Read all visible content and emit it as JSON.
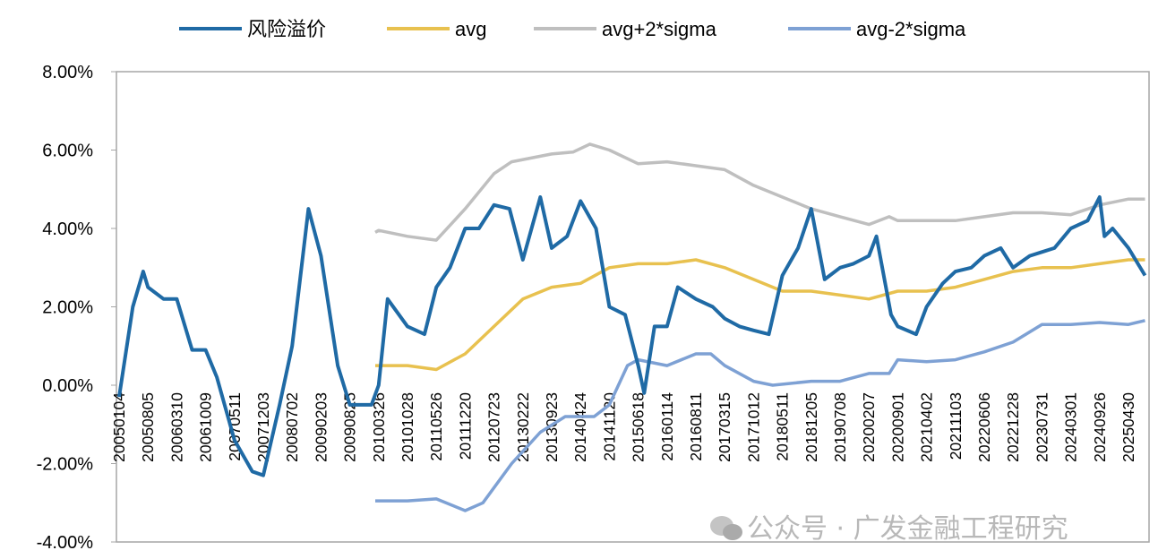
{
  "chart_data": {
    "type": "line",
    "title": "",
    "xlabel": "",
    "ylabel": "",
    "ylim": [
      -4,
      8
    ],
    "y_unit": "%",
    "y_ticks": [
      "8.00%",
      "6.00%",
      "4.00%",
      "2.00%",
      "0.00%",
      "-2.00%",
      "-4.00%"
    ],
    "y_tick_values": [
      8,
      6,
      4,
      2,
      0,
      -2,
      -4
    ],
    "x_ticks": [
      "20050104",
      "20050805",
      "20060310",
      "20061009",
      "20070511",
      "20071203",
      "20080702",
      "20090203",
      "20090825",
      "20100326",
      "20101028",
      "20110526",
      "20111220",
      "20120723",
      "20130222",
      "20130923",
      "20140424",
      "20141120",
      "20150618",
      "20160114",
      "20160811",
      "20170315",
      "20171012",
      "20180511",
      "20181205",
      "20190708",
      "20200207",
      "20200901",
      "20210402",
      "20211103",
      "20220606",
      "20221228",
      "20230731",
      "20240301",
      "20240926",
      "20250430"
    ],
    "grid": false,
    "legend_position": "top",
    "series": [
      {
        "name": "风险溢价",
        "color": "#1f6aa5",
        "points": [
          [
            "20050104",
            -0.3
          ],
          [
            "20050415",
            2.0
          ],
          [
            "20050701",
            2.9
          ],
          [
            "20050805",
            2.5
          ],
          [
            "20051201",
            2.2
          ],
          [
            "20060310",
            2.2
          ],
          [
            "20060701",
            0.9
          ],
          [
            "20061009",
            0.9
          ],
          [
            "20070101",
            0.2
          ],
          [
            "20070511",
            -1.4
          ],
          [
            "20070915",
            -2.2
          ],
          [
            "20071203",
            -2.3
          ],
          [
            "20080401",
            -0.5
          ],
          [
            "20080702",
            1.0
          ],
          [
            "20081101",
            4.5
          ],
          [
            "20090203",
            3.3
          ],
          [
            "20090601",
            0.5
          ],
          [
            "20090825",
            -0.5
          ],
          [
            "20100201",
            -0.5
          ],
          [
            "20100326",
            0.0
          ],
          [
            "20100601",
            2.2
          ],
          [
            "20101028",
            1.5
          ],
          [
            "20110301",
            1.3
          ],
          [
            "20110526",
            2.5
          ],
          [
            "20110901",
            3.0
          ],
          [
            "20111220",
            4.0
          ],
          [
            "20120401",
            4.0
          ],
          [
            "20120723",
            4.6
          ],
          [
            "20121115",
            4.5
          ],
          [
            "20130222",
            3.2
          ],
          [
            "20130701",
            4.8
          ],
          [
            "20130923",
            3.5
          ],
          [
            "20140115",
            3.8
          ],
          [
            "20140424",
            4.7
          ],
          [
            "20140815",
            4.0
          ],
          [
            "20141120",
            2.0
          ],
          [
            "20150315",
            1.8
          ],
          [
            "20150618",
            0.5
          ],
          [
            "20150801",
            -0.2
          ],
          [
            "20151015",
            1.5
          ],
          [
            "20160114",
            1.5
          ],
          [
            "20160401",
            2.5
          ],
          [
            "20160811",
            2.2
          ],
          [
            "20161215",
            2.0
          ],
          [
            "20170315",
            1.7
          ],
          [
            "20170701",
            1.5
          ],
          [
            "20171012",
            1.4
          ],
          [
            "20180201",
            1.3
          ],
          [
            "20180511",
            2.8
          ],
          [
            "20180901",
            3.5
          ],
          [
            "20181205",
            4.5
          ],
          [
            "20190315",
            2.7
          ],
          [
            "20190708",
            3.0
          ],
          [
            "20191015",
            3.1
          ],
          [
            "20200207",
            3.3
          ],
          [
            "20200401",
            3.8
          ],
          [
            "20200715",
            1.8
          ],
          [
            "20200901",
            1.5
          ],
          [
            "20210115",
            1.3
          ],
          [
            "20210402",
            2.0
          ],
          [
            "20210801",
            2.6
          ],
          [
            "20211103",
            2.9
          ],
          [
            "20220301",
            3.0
          ],
          [
            "20220606",
            3.3
          ],
          [
            "20221001",
            3.5
          ],
          [
            "20221228",
            3.0
          ],
          [
            "20230501",
            3.3
          ],
          [
            "20230731",
            3.4
          ],
          [
            "20231101",
            3.5
          ],
          [
            "20240301",
            4.0
          ],
          [
            "20240701",
            4.2
          ],
          [
            "20240926",
            4.8
          ],
          [
            "20241101",
            3.8
          ],
          [
            "20250101",
            4.0
          ],
          [
            "20250430",
            3.5
          ],
          [
            "20250901",
            2.8
          ]
        ]
      },
      {
        "name": "avg",
        "color": "#e8c14f",
        "points": [
          [
            "20100301",
            0.5
          ],
          [
            "20101028",
            0.5
          ],
          [
            "20110526",
            0.4
          ],
          [
            "20111220",
            0.8
          ],
          [
            "20120723",
            1.5
          ],
          [
            "20130222",
            2.2
          ],
          [
            "20130923",
            2.5
          ],
          [
            "20140424",
            2.6
          ],
          [
            "20141120",
            3.0
          ],
          [
            "20150618",
            3.1
          ],
          [
            "20160114",
            3.1
          ],
          [
            "20160811",
            3.2
          ],
          [
            "20170315",
            3.0
          ],
          [
            "20171012",
            2.7
          ],
          [
            "20180511",
            2.4
          ],
          [
            "20181205",
            2.4
          ],
          [
            "20190708",
            2.3
          ],
          [
            "20200207",
            2.2
          ],
          [
            "20200901",
            2.4
          ],
          [
            "20210402",
            2.4
          ],
          [
            "20211103",
            2.5
          ],
          [
            "20220606",
            2.7
          ],
          [
            "20221228",
            2.9
          ],
          [
            "20230731",
            3.0
          ],
          [
            "20240301",
            3.0
          ],
          [
            "20240926",
            3.1
          ],
          [
            "20250430",
            3.2
          ],
          [
            "20250901",
            3.2
          ]
        ]
      },
      {
        "name": "avg+2*sigma",
        "color": "#bfbfbf",
        "points": [
          [
            "20100301",
            3.9
          ],
          [
            "20100326",
            3.95
          ],
          [
            "20101028",
            3.8
          ],
          [
            "20110526",
            3.7
          ],
          [
            "20111220",
            4.5
          ],
          [
            "20120723",
            5.4
          ],
          [
            "20121201",
            5.7
          ],
          [
            "20130923",
            5.9
          ],
          [
            "20140301",
            5.95
          ],
          [
            "20140701",
            6.15
          ],
          [
            "20141120",
            6.0
          ],
          [
            "20150618",
            5.65
          ],
          [
            "20160114",
            5.7
          ],
          [
            "20160811",
            5.6
          ],
          [
            "20170315",
            5.5
          ],
          [
            "20171012",
            5.1
          ],
          [
            "20180511",
            4.8
          ],
          [
            "20181205",
            4.5
          ],
          [
            "20190708",
            4.3
          ],
          [
            "20200207",
            4.1
          ],
          [
            "20200701",
            4.3
          ],
          [
            "20200901",
            4.2
          ],
          [
            "20210402",
            4.2
          ],
          [
            "20211103",
            4.2
          ],
          [
            "20220606",
            4.3
          ],
          [
            "20221228",
            4.4
          ],
          [
            "20230731",
            4.4
          ],
          [
            "20240301",
            4.35
          ],
          [
            "20240926",
            4.6
          ],
          [
            "20250430",
            4.75
          ],
          [
            "20250901",
            4.75
          ]
        ]
      },
      {
        "name": "avg-2*sigma",
        "color": "#7ea1d4",
        "points": [
          [
            "20100301",
            -2.95
          ],
          [
            "20101028",
            -2.95
          ],
          [
            "20110526",
            -2.9
          ],
          [
            "20111220",
            -3.2
          ],
          [
            "20120501",
            -3.0
          ],
          [
            "20121201",
            -2.0
          ],
          [
            "20130701",
            -1.2
          ],
          [
            "20140101",
            -0.8
          ],
          [
            "20140801",
            -0.8
          ],
          [
            "20141120",
            -0.5
          ],
          [
            "20150401",
            0.5
          ],
          [
            "20150618",
            0.65
          ],
          [
            "20160114",
            0.5
          ],
          [
            "20160811",
            0.8
          ],
          [
            "20161201",
            0.8
          ],
          [
            "20170315",
            0.5
          ],
          [
            "20171012",
            0.1
          ],
          [
            "20180301",
            0.0
          ],
          [
            "20181205",
            0.1
          ],
          [
            "20190708",
            0.1
          ],
          [
            "20200207",
            0.3
          ],
          [
            "20200701",
            0.3
          ],
          [
            "20200901",
            0.65
          ],
          [
            "20210402",
            0.6
          ],
          [
            "20211103",
            0.65
          ],
          [
            "20220606",
            0.85
          ],
          [
            "20221228",
            1.1
          ],
          [
            "20230731",
            1.55
          ],
          [
            "20240301",
            1.55
          ],
          [
            "20240926",
            1.6
          ],
          [
            "20250430",
            1.55
          ],
          [
            "20250901",
            1.65
          ]
        ]
      }
    ]
  },
  "watermark": "公众号 · 广发金融工程研究"
}
